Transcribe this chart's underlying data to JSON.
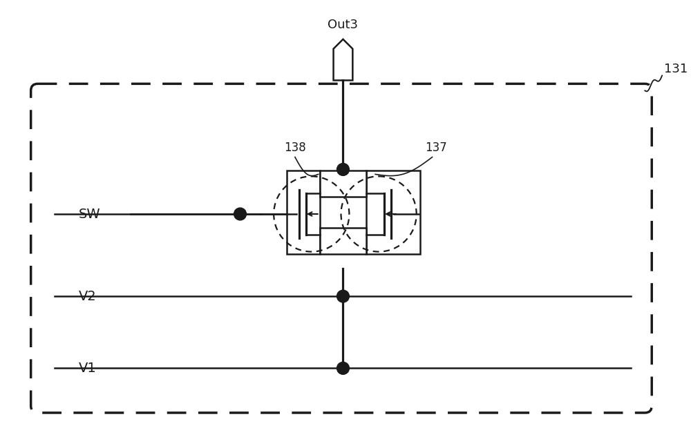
{
  "bg_color": "#ffffff",
  "line_color": "#1a1a1a",
  "label_SW": "SW",
  "label_V2": "V2",
  "label_V1": "V1",
  "label_Out3": "Out3",
  "label_131": "131",
  "label_137": "137",
  "label_138": "138",
  "fig_width": 10.0,
  "fig_height": 6.2,
  "dpi": 100
}
